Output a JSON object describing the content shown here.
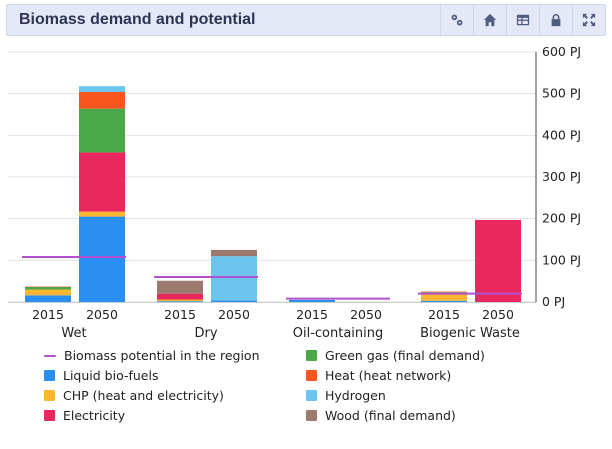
{
  "panel": {
    "title": "Biomass demand and potential",
    "tools": [
      {
        "name": "settings-icon"
      },
      {
        "name": "home-icon"
      },
      {
        "name": "table-icon"
      },
      {
        "name": "lock-icon"
      },
      {
        "name": "expand-icon"
      }
    ]
  },
  "chart_data": {
    "type": "bar",
    "stacked": true,
    "y_unit": "PJ",
    "ylim": [
      0,
      600
    ],
    "y_ticks": [
      "0 PJ",
      "100 PJ",
      "200 PJ",
      "300 PJ",
      "400 PJ",
      "500 PJ",
      "600 PJ"
    ],
    "y_axis_side": "right",
    "grid": true,
    "groups": [
      "Wet",
      "Dry",
      "Oil-containing",
      "Biogenic Waste"
    ],
    "years": [
      "2015",
      "2050"
    ],
    "series": [
      {
        "name": "Liquid bio-fuels",
        "color": "#2a8ff0",
        "values": [
          [
            16,
            205
          ],
          [
            2,
            4
          ],
          [
            5,
            0
          ],
          [
            3,
            0
          ]
        ]
      },
      {
        "name": "CHP (heat and electricity)",
        "color": "#fbb731",
        "values": [
          [
            14,
            12
          ],
          [
            4,
            0
          ],
          [
            0,
            0
          ],
          [
            20,
            0
          ]
        ]
      },
      {
        "name": "Electricity",
        "color": "#e9285f",
        "values": [
          [
            0,
            142
          ],
          [
            14,
            0
          ],
          [
            0,
            0
          ],
          [
            0,
            197
          ]
        ]
      },
      {
        "name": "Green gas (final demand)",
        "color": "#4aa84a",
        "values": [
          [
            6,
            105
          ],
          [
            0,
            0
          ],
          [
            0,
            0
          ],
          [
            1,
            0
          ]
        ]
      },
      {
        "name": "Heat (heat network)",
        "color": "#f9561f",
        "values": [
          [
            1,
            40
          ],
          [
            0,
            0
          ],
          [
            0,
            0
          ],
          [
            1,
            0
          ]
        ]
      },
      {
        "name": "Hydrogen",
        "color": "#6bc5ee",
        "values": [
          [
            0,
            14
          ],
          [
            0,
            106
          ],
          [
            0,
            0
          ],
          [
            0,
            0
          ]
        ]
      },
      {
        "name": "Wood (final demand)",
        "color": "#9c7a70",
        "values": [
          [
            0,
            0
          ],
          [
            31,
            15
          ],
          [
            0,
            0
          ],
          [
            0,
            0
          ]
        ]
      }
    ],
    "potential": {
      "name": "Biomass potential in the region",
      "color": "#b44fd0",
      "values": [
        108,
        60,
        8,
        20
      ]
    }
  },
  "legend": {
    "entries": [
      {
        "label": "Biomass potential in the region",
        "color": "#b44fd0",
        "kind": "line"
      },
      {
        "label": "Green gas (final demand)",
        "color": "#4aa84a",
        "kind": "box"
      },
      {
        "label": "Liquid bio-fuels",
        "color": "#2a8ff0",
        "kind": "box"
      },
      {
        "label": "Heat (heat network)",
        "color": "#f9561f",
        "kind": "box"
      },
      {
        "label": "CHP (heat and electricity)",
        "color": "#fbb731",
        "kind": "box"
      },
      {
        "label": "Hydrogen",
        "color": "#6bc5ee",
        "kind": "box"
      },
      {
        "label": "Electricity",
        "color": "#e9285f",
        "kind": "box"
      },
      {
        "label": "Wood (final demand)",
        "color": "#9c7a70",
        "kind": "box"
      }
    ]
  }
}
